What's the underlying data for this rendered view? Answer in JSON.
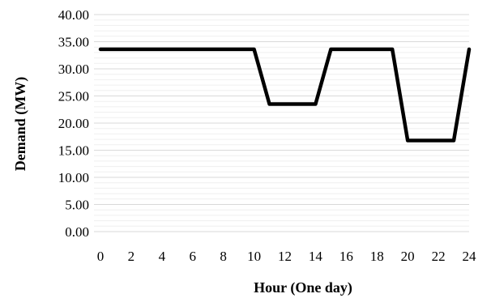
{
  "chart_data": {
    "type": "line",
    "title": "",
    "xlabel": "Hour  (One day)",
    "ylabel": "Demand (MW)",
    "x": [
      0,
      1,
      2,
      3,
      4,
      5,
      6,
      7,
      8,
      9,
      10,
      11,
      12,
      13,
      14,
      15,
      16,
      17,
      18,
      19,
      20,
      21,
      22,
      23,
      24
    ],
    "series": [
      {
        "values": [
          33.6,
          33.6,
          33.6,
          33.6,
          33.6,
          33.6,
          33.6,
          33.6,
          33.6,
          33.6,
          33.6,
          23.5,
          23.5,
          23.5,
          23.5,
          33.6,
          33.6,
          33.6,
          33.6,
          33.6,
          16.8,
          16.8,
          16.8,
          16.8,
          33.6
        ],
        "color": "#000000"
      }
    ],
    "xlim": [
      0,
      24
    ],
    "ylim": [
      0,
      40
    ],
    "x_ticks": [
      "0",
      "2",
      "4",
      "6",
      "8",
      "10",
      "12",
      "14",
      "16",
      "18",
      "20",
      "22",
      "24"
    ],
    "x_tick_values": [
      0,
      2,
      4,
      6,
      8,
      10,
      12,
      14,
      16,
      18,
      20,
      22,
      24
    ],
    "y_ticks": [
      "0.00",
      "5.00",
      "10.00",
      "15.00",
      "20.00",
      "25.00",
      "30.00",
      "35.00",
      "40.00"
    ],
    "y_tick_values": [
      0,
      5,
      10,
      15,
      20,
      25,
      30,
      35,
      40
    ],
    "grid": true,
    "legend": "none"
  }
}
